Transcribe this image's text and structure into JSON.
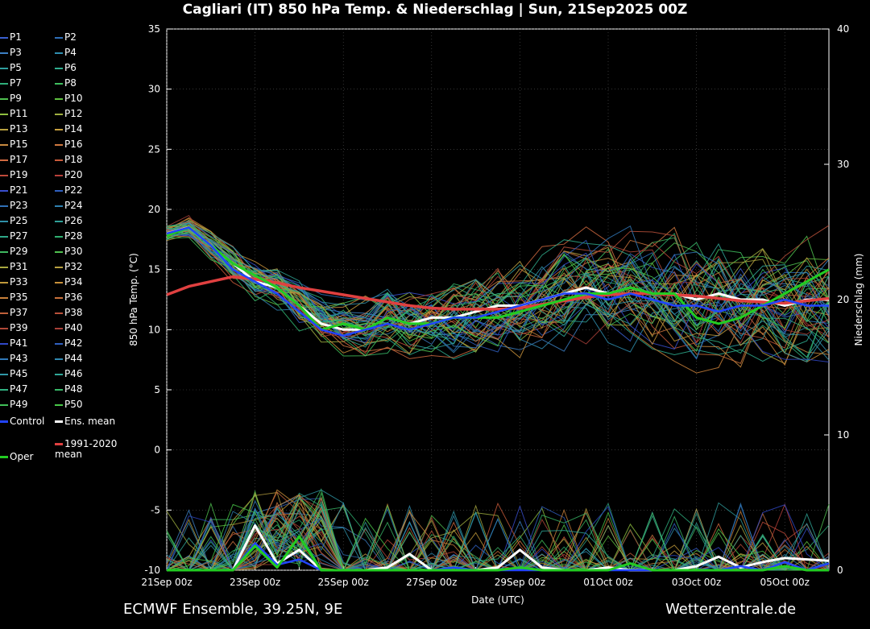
{
  "title": "Cagliari  (IT)  850 hPa Temp. & Niederschlag | Sun, 21Sep2025 00Z",
  "footer": {
    "source": "ECMWF Ensemble, 39.25N, 9E",
    "site": "Wetterzentrale.de"
  },
  "colors": {
    "background": "#000000",
    "control": "#2244ff",
    "ens_mean": "#ffffff",
    "climate": "#e04040",
    "oper": "#22cc22"
  },
  "legend": {
    "members": [
      "P1",
      "P2",
      "P3",
      "P4",
      "P5",
      "P6",
      "P7",
      "P8",
      "P9",
      "P10",
      "P11",
      "P12",
      "P13",
      "P14",
      "P15",
      "P16",
      "P17",
      "P18",
      "P19",
      "P20",
      "P21",
      "P22",
      "P23",
      "P24",
      "P25",
      "P26",
      "P27",
      "P28",
      "P29",
      "P30",
      "P31",
      "P32",
      "P33",
      "P34",
      "P35",
      "P36",
      "P37",
      "P38",
      "P39",
      "P40",
      "P41",
      "P42",
      "P43",
      "P44",
      "P45",
      "P46",
      "P47",
      "P48",
      "P49",
      "P50"
    ],
    "member_colors": [
      "#3a5fcf",
      "#2f6fb8",
      "#3c7fc4",
      "#2f8fb0",
      "#2f9f9f",
      "#2fae8f",
      "#2fae7a",
      "#3fbf5f",
      "#4fc04f",
      "#5fc040",
      "#8fbf3f",
      "#a0b040",
      "#b8a040",
      "#c8a040",
      "#c88a40",
      "#d07840",
      "#d06a40",
      "#c85a3a",
      "#c04a3a",
      "#b8403a",
      "#3a4fcf",
      "#2f5fbf",
      "#3070b8",
      "#2f80b0",
      "#2f90a8",
      "#2fa098",
      "#2fa888",
      "#2fb070",
      "#3fb860",
      "#4fc050",
      "#a8a840",
      "#b8a040",
      "#c0983a",
      "#c8903a",
      "#c8803a",
      "#c8703a",
      "#c0603a",
      "#b8503a",
      "#b04838",
      "#a84038",
      "#3048c8",
      "#3060c0",
      "#3078b8",
      "#3088b0",
      "#3098a8",
      "#30a898",
      "#30b080",
      "#38b868",
      "#40c058",
      "#48c848"
    ],
    "control": "Control",
    "ens_mean": "Ens. mean",
    "climate": "1991-2020\nmean",
    "oper": "Oper"
  },
  "chart_data": {
    "type": "line",
    "title": "Cagliari  (IT)  850 hPa Temp. & Niederschlag | Sun, 21Sep2025 00Z",
    "xlabel": "Date (UTC)",
    "ylabel": "850 hPa Temp. (°C)",
    "y2label": "Niederschlag (mm)",
    "x_ticks": [
      "21Sep 00z",
      "23Sep 00z",
      "25Sep 00z",
      "27Sep 00z",
      "29Sep 00z",
      "01Oct 00z",
      "03Oct 00z",
      "05Oct 00z"
    ],
    "x_days_range": [
      0,
      15
    ],
    "ylim": [
      -10,
      35
    ],
    "y_ticks": [
      -10,
      -5,
      0,
      5,
      10,
      15,
      20,
      25,
      30,
      35
    ],
    "y2lim": [
      0,
      40
    ],
    "y2_ticks": [
      0,
      10,
      20,
      30,
      40
    ],
    "grid": true,
    "legend_position": "left",
    "x_days": [
      0,
      0.5,
      1,
      1.5,
      2,
      2.5,
      3,
      3.5,
      4,
      4.5,
      5,
      5.5,
      6,
      6.5,
      7,
      7.5,
      8,
      8.5,
      9,
      9.5,
      10,
      10.5,
      11,
      11.5,
      12,
      12.5,
      13,
      13.5,
      14,
      14.5,
      15
    ],
    "series": [
      {
        "name": "Ens. mean",
        "axis": "temp",
        "values": [
          18,
          18.5,
          17,
          15.5,
          14,
          13.5,
          12,
          10.5,
          10,
          10,
          11,
          10.5,
          11,
          11,
          11.5,
          12,
          12,
          12.5,
          13,
          13.5,
          13,
          13.5,
          13,
          13,
          12.5,
          13,
          12.5,
          12.5,
          12,
          12.5,
          12.5
        ]
      },
      {
        "name": "1991-2020 mean",
        "axis": "temp",
        "values": [
          12.9,
          13.6,
          14.0,
          14.4,
          14.2,
          13.9,
          13.5,
          13.2,
          12.9,
          12.6,
          12.3,
          12.0,
          11.8,
          11.7,
          11.7,
          11.7,
          11.8,
          12.1,
          12.4,
          12.7,
          12.9,
          13.0,
          13.0,
          12.9,
          12.8,
          12.6,
          12.4,
          12.3,
          12.2,
          12.4,
          12.6
        ]
      },
      {
        "name": "Oper",
        "axis": "temp",
        "values": [
          17.8,
          18.5,
          17,
          15.5,
          14.5,
          13.5,
          12,
          10,
          10.5,
          10,
          11,
          10.5,
          10.5,
          11,
          11,
          11,
          11.5,
          12,
          12.5,
          13,
          13,
          13.5,
          13,
          13,
          11,
          10.5,
          11,
          12,
          13,
          14,
          15
        ]
      },
      {
        "name": "Control",
        "axis": "temp",
        "values": [
          18,
          18.5,
          17,
          15,
          14,
          13,
          11.5,
          10,
          9.5,
          10,
          10.5,
          10,
          10.5,
          11,
          11,
          11.5,
          12,
          12.5,
          13,
          13,
          12.5,
          13,
          12.5,
          12,
          12,
          11.5,
          12,
          12,
          12.5,
          12,
          12
        ]
      },
      {
        "name": "Ens. mean",
        "axis": "precip",
        "values": [
          0,
          0,
          0,
          0,
          3.3,
          0.5,
          1.5,
          0,
          0,
          0,
          0.2,
          1.2,
          0,
          0,
          0,
          0.2,
          1.5,
          0.2,
          0,
          0,
          0.2,
          0,
          0,
          0,
          0.3,
          1.0,
          0.2,
          0.6,
          0.9,
          0.8,
          0.7
        ]
      },
      {
        "name": "Control",
        "axis": "precip",
        "values": [
          0,
          0,
          0,
          0,
          2.0,
          0.4,
          0.8,
          0,
          0,
          0,
          0,
          0,
          0,
          0.2,
          0,
          0,
          0,
          0,
          0,
          0,
          0,
          0,
          0,
          0,
          0,
          0,
          0.3,
          0,
          0.6,
          0,
          0.5
        ]
      },
      {
        "name": "Oper",
        "axis": "precip",
        "values": [
          0,
          0,
          0,
          0,
          1.8,
          0.2,
          2.5,
          0,
          0,
          0,
          0,
          0,
          0,
          0,
          0,
          0,
          0.2,
          0,
          0,
          0,
          0,
          0.5,
          0,
          0,
          0,
          0,
          0,
          0,
          0.3,
          0,
          0
        ]
      }
    ]
  }
}
